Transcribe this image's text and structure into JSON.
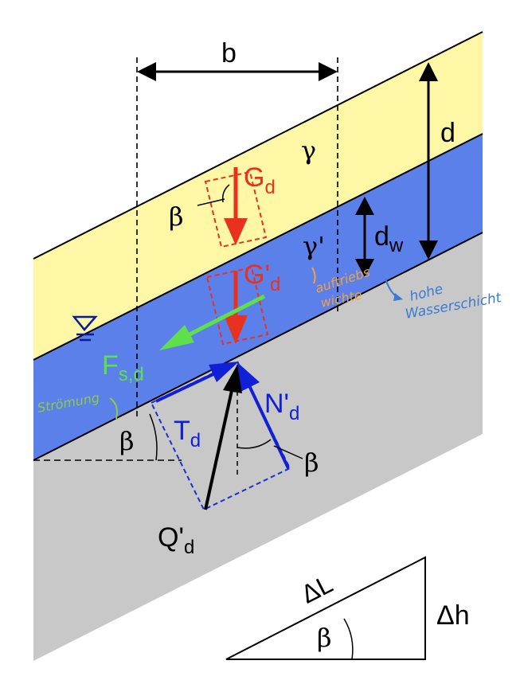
{
  "labels": {
    "b": "b",
    "d": "d",
    "dw": "d",
    "dw_sub": "w",
    "gamma": "γ",
    "gamma_prime": "γ'",
    "beta_G": "β",
    "beta_slope": "β",
    "beta_N": "β",
    "beta_triangle": "β",
    "Gd": "G",
    "Gd_sub": "d",
    "Gpd": "G'",
    "Gpd_sub": "d",
    "Fsd": "F",
    "Fsd_sub": "s,d",
    "Td": "T",
    "Td_sub": "d",
    "Npd": "N'",
    "Npd_sub": "d",
    "Qpd": "Q'",
    "Qpd_sub": "d",
    "deltaL": "ΔL",
    "deltah": "Δh"
  },
  "annotations": {
    "orange_line1": "auftriebs",
    "orange_line2": "wichte",
    "blue_line1": "hohe",
    "blue_line2": "Wasserschicht",
    "green": "Strömung"
  },
  "colors": {
    "yellow_layer": "#fdf7a6",
    "blue_layer": "#5b80ea",
    "gray_layer": "#c8c8c8",
    "red": "#e8311f",
    "green": "#5fe04a",
    "blue_arrow": "#1020d8",
    "black": "#000000",
    "dashed_blue": "#1a2fd0",
    "orange": "#f2a23c",
    "hand_blue": "#3a7bd5",
    "hand_green": "#8ccc40"
  }
}
